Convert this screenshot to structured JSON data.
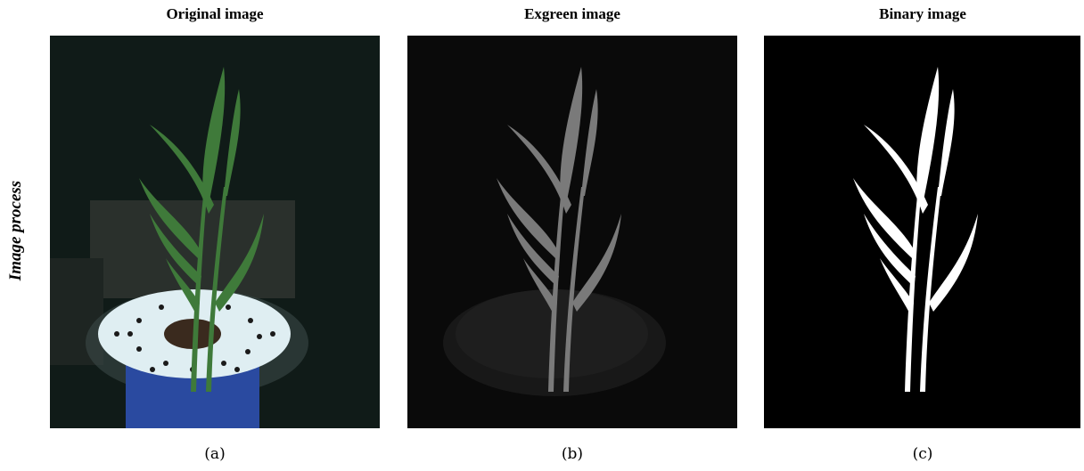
{
  "side_label": "Image process",
  "panels": [
    {
      "title": "Original image",
      "caption": "(a)"
    },
    {
      "title": "Exgreen image",
      "caption": "(b)"
    },
    {
      "title": "Binary image",
      "caption": "(c)"
    }
  ]
}
